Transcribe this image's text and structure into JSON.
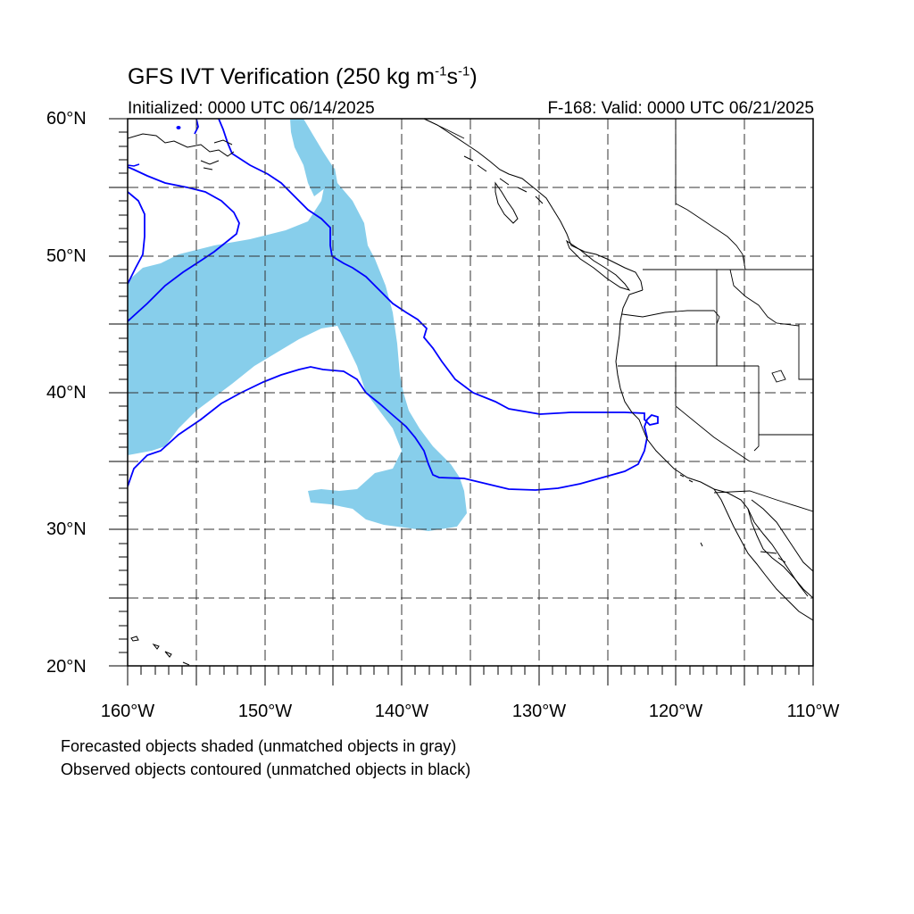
{
  "title": {
    "main": "GFS IVT Verification (250 kg m",
    "sup1": "-1",
    "mid": "s",
    "sup2": "-1",
    "end": ")"
  },
  "subtitle": {
    "left": "Initialized: 0000 UTC 06/14/2025",
    "right": "F-168: Valid: 0000 UTC 06/21/2025"
  },
  "lat_labels": [
    "60°N",
    "50°N",
    "40°N",
    "30°N",
    "20°N"
  ],
  "lon_labels": [
    "160°W",
    "150°W",
    "140°W",
    "130°W",
    "120°W",
    "110°W"
  ],
  "notes": [
    "Forecasted objects shaded (unmatched objects in gray)",
    "Observed objects contoured (unmatched objects in black)"
  ],
  "colors": {
    "forecast_fill": "#87ceeb",
    "observed_contour": "#0000ff",
    "coastline": "#000000",
    "grid": "#000000"
  }
}
